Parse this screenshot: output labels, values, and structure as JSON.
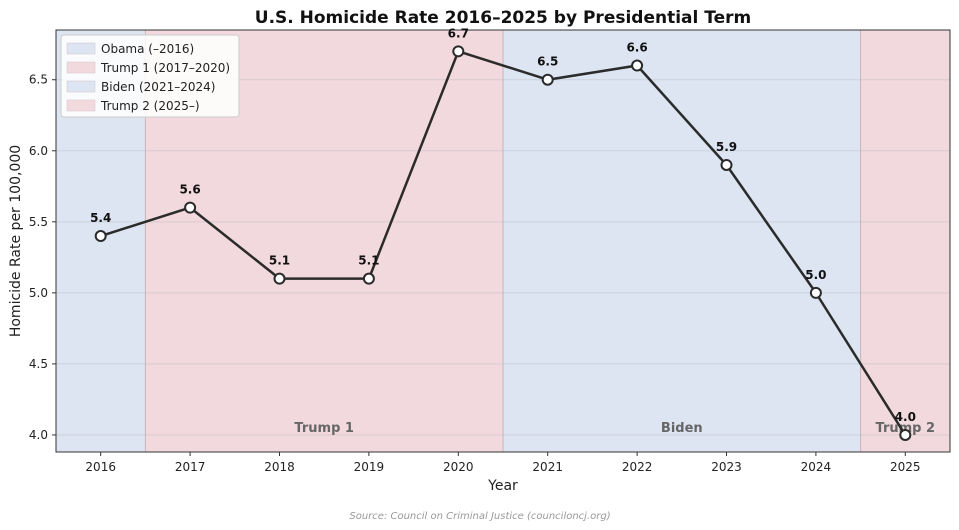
{
  "chart_data": {
    "type": "line",
    "title": "U.S. Homicide Rate 2016–2025 by Presidential Term",
    "xlabel": "Year",
    "ylabel": "Homicide Rate per 100,000",
    "x": [
      2016,
      2017,
      2018,
      2019,
      2020,
      2021,
      2022,
      2023,
      2024,
      2025
    ],
    "values": [
      5.4,
      5.6,
      5.1,
      5.1,
      6.7,
      6.5,
      6.6,
      5.9,
      5.0,
      4.0
    ],
    "data_labels": [
      "5.4",
      "5.6",
      "5.1",
      "5.1",
      "6.7",
      "6.5",
      "6.6",
      "5.9",
      "5.0",
      "4.0"
    ],
    "xlim": [
      2015.5,
      2025.5
    ],
    "ylim": [
      3.88,
      6.85
    ],
    "xticks": [
      "2016",
      "2017",
      "2018",
      "2019",
      "2020",
      "2021",
      "2022",
      "2023",
      "2024",
      "2025"
    ],
    "yticks": [
      "4.0",
      "4.5",
      "5.0",
      "5.5",
      "6.0",
      "6.5"
    ],
    "line_color": "#2b2b2b",
    "grid": true,
    "legend_position": "top-left",
    "terms": [
      {
        "legend": "Obama (–2016)",
        "start": 2015.5,
        "end": 2016.5,
        "color": "#dce5f1",
        "label": ""
      },
      {
        "legend": "Trump 1 (2017–2020)",
        "start": 2016.5,
        "end": 2020.5,
        "color": "#f2d9dd",
        "label": "Trump 1"
      },
      {
        "legend": "Biden (2021–2024)",
        "start": 2020.5,
        "end": 2024.5,
        "color": "#dce5f1",
        "label": "Biden"
      },
      {
        "legend": "Trump 2 (2025–)",
        "start": 2024.5,
        "end": 2025.5,
        "color": "#f2d9dd",
        "label": "Trump 2"
      }
    ]
  },
  "source": "Source: Council on Criminal Justice (counciloncj.org)"
}
